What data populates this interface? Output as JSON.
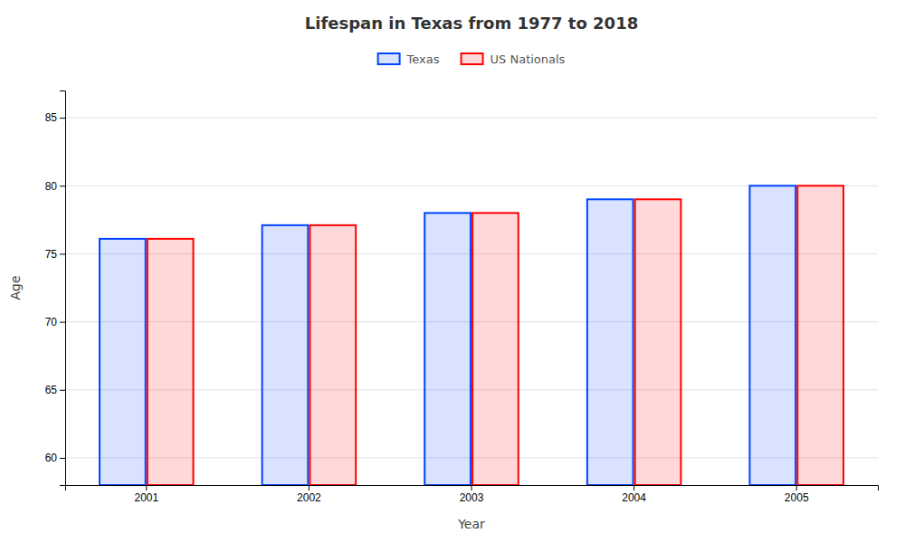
{
  "chart_data": {
    "type": "bar",
    "title": "Lifespan in Texas from 1977 to 2018",
    "xlabel": "Year",
    "ylabel": "Age",
    "categories": [
      "2001",
      "2002",
      "2003",
      "2004",
      "2005"
    ],
    "series": [
      {
        "name": "Texas",
        "color": "#0044ff",
        "values": [
          76.1,
          77.1,
          78.0,
          79.0,
          80.0
        ]
      },
      {
        "name": "US Nationals",
        "color": "#ff0000",
        "values": [
          76.1,
          77.1,
          78.0,
          79.0,
          80.0
        ]
      }
    ],
    "ylim": [
      58,
      87
    ],
    "yticks": [
      60,
      65,
      70,
      75,
      80,
      85
    ],
    "grid": true,
    "legend": "top"
  }
}
